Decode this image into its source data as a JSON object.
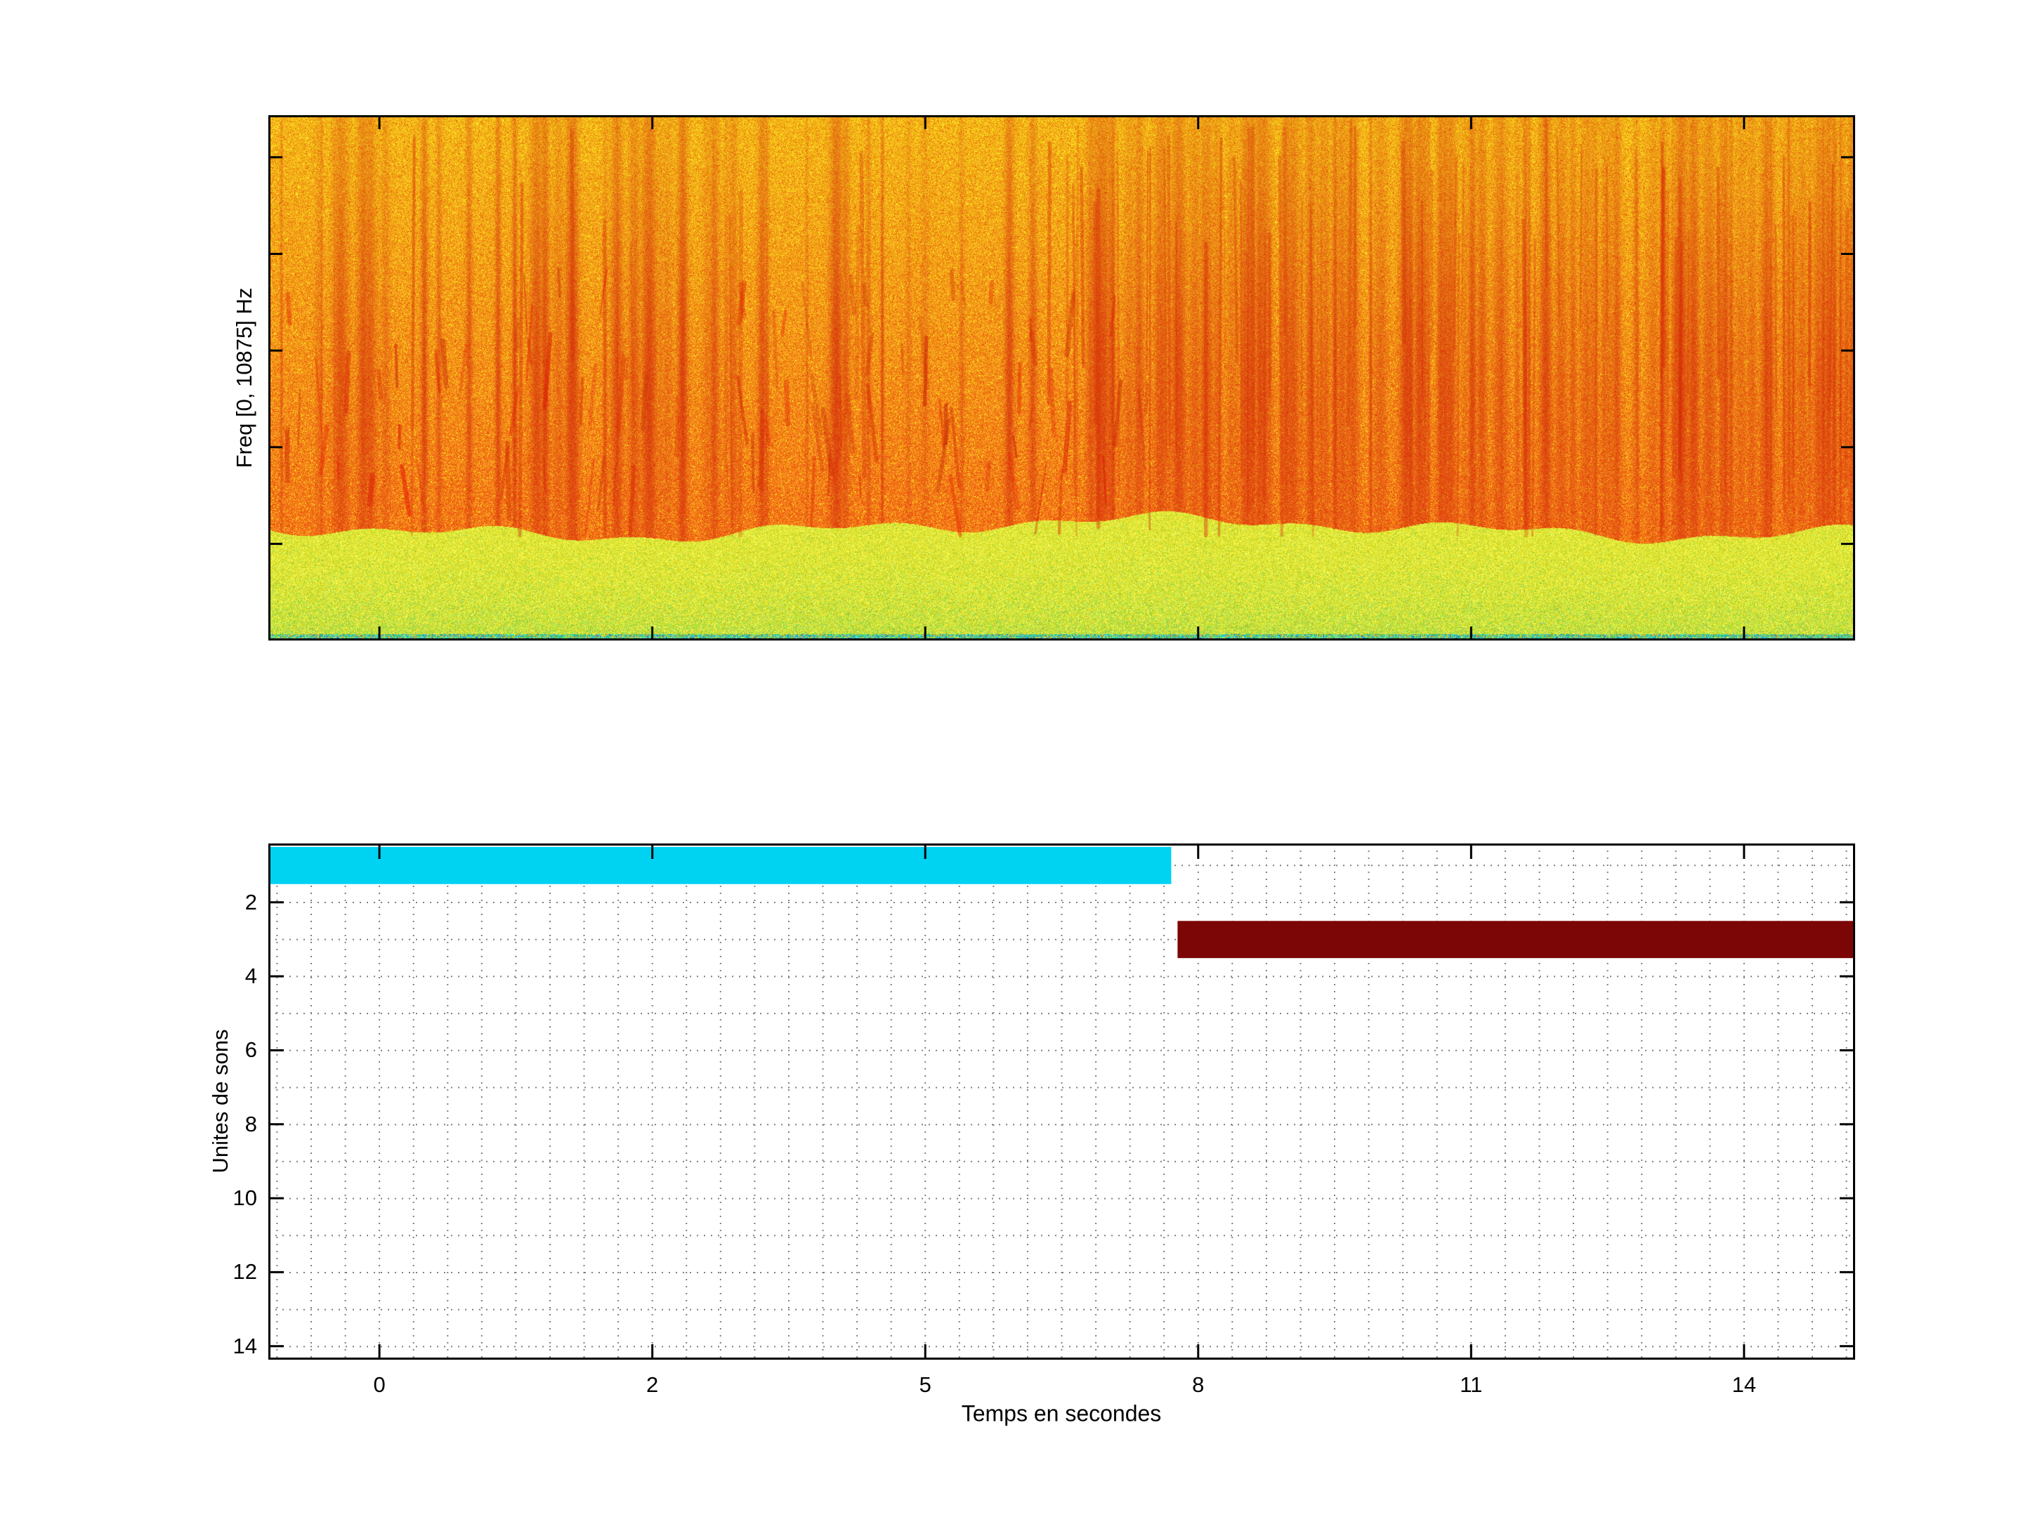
{
  "figure": {
    "background": "#ffffff"
  },
  "spectrogram": {
    "ylabel": "Freq [0, 10875] Hz",
    "freq_min_hz": 0,
    "freq_max_hz": 10875
  },
  "units_plot": {
    "xlabel": "Temps en secondes",
    "ylabel": "Unites de sons",
    "x_tick_labels": [
      "0",
      "2",
      "5",
      "8",
      "11",
      "14"
    ],
    "y_tick_labels": [
      "2",
      "4",
      "6",
      "8",
      "10",
      "12",
      "14"
    ],
    "bars": [
      {
        "unit": 1,
        "start_frac": 0.0,
        "end_frac": 0.569,
        "start_s": -1.2,
        "end_s": 7.7,
        "color": "#00d2f2"
      },
      {
        "unit": 3,
        "start_frac": 0.573,
        "end_frac": 1.0,
        "start_s": 7.75,
        "end_s": 15.6,
        "color": "#7c0505"
      }
    ]
  },
  "chart_data": [
    {
      "type": "heatmap",
      "title": "",
      "ylabel": "Freq [0, 10875] Hz",
      "y_range_hz": [
        0,
        10875
      ],
      "description": "Audio spectrogram: dense orange/red energy with vertical dark-red harmonic streaks across 0-10875 Hz, a yellow-green low-frequency noise band near 0 Hz, and scattered cyan/blue pixels along the bottom edge",
      "colormap": "jet-like (cyan-green-yellow-orange-red)"
    },
    {
      "type": "bar",
      "subtype": "horizontal-gantt",
      "xlabel": "Temps en secondes",
      "ylabel": "Unites de sons",
      "x_ticks": [
        0,
        2,
        5,
        8,
        11,
        14
      ],
      "y_ticks": [
        2,
        4,
        6,
        8,
        10,
        12,
        14
      ],
      "ylim": [
        0.4,
        14.6
      ],
      "grid": "dotted",
      "series": [
        {
          "name": "unite-de-son-1",
          "y": 1,
          "x_start": -1.2,
          "x_end": 7.7,
          "color": "#00d2f2"
        },
        {
          "name": "unite-de-son-3",
          "y": 3,
          "x_start": 7.75,
          "x_end": 15.6,
          "color": "#7c0505"
        }
      ]
    }
  ]
}
